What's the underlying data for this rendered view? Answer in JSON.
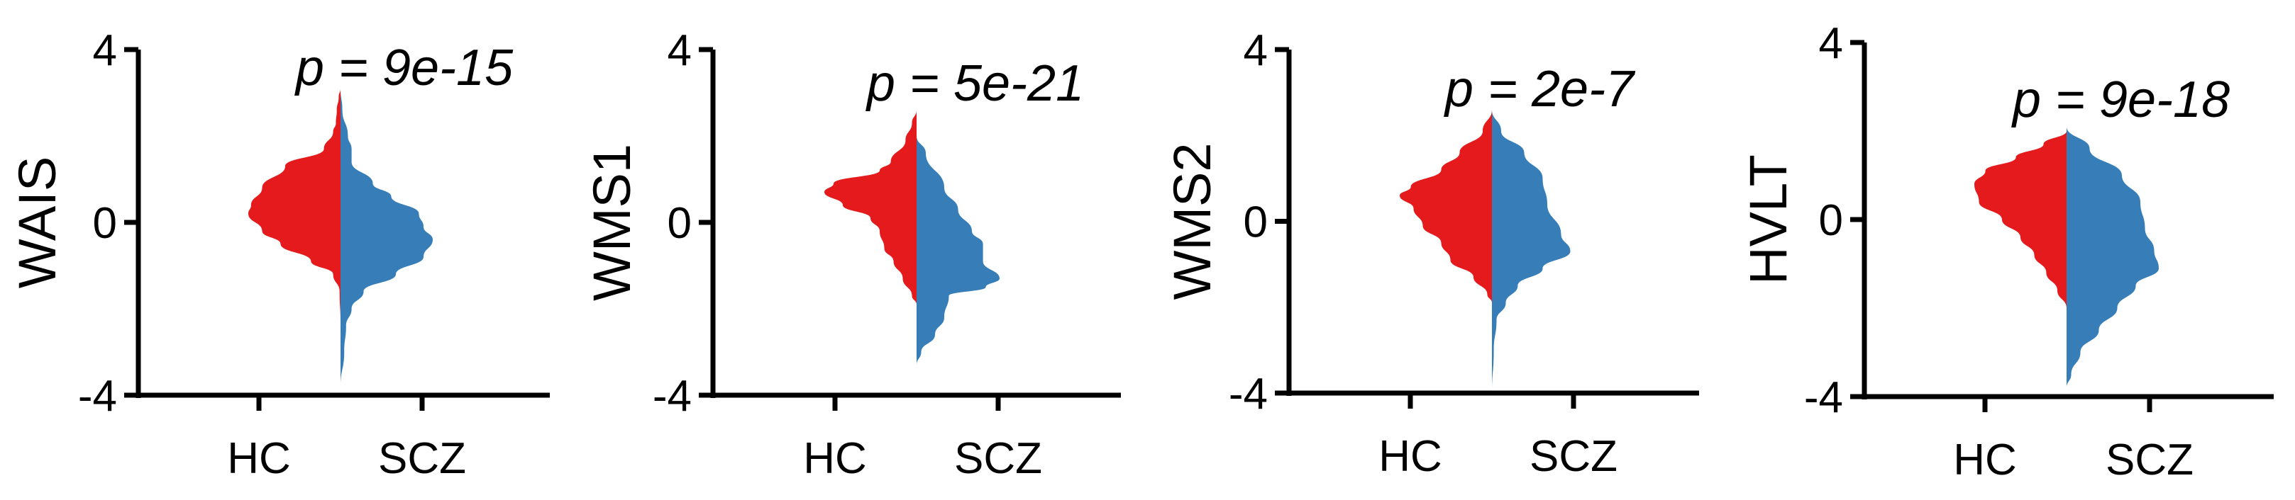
{
  "colors": {
    "hc": "#e41a1c",
    "scz": "#377eb8",
    "axis": "#000000"
  },
  "chart_data": [
    {
      "type": "violin",
      "ylabel": "WAIS",
      "annotation": "p = 9e-15",
      "categories": [
        "HC",
        "SCZ"
      ],
      "ylim": [
        -4,
        4
      ],
      "yticks": [
        "4",
        "0",
        "-4"
      ],
      "split_violin": true,
      "series": [
        {
          "name": "HC",
          "side": "left",
          "color": "#e41a1c",
          "density": [
            [
              3.1,
              0.0
            ],
            [
              2.9,
              0.02
            ],
            [
              2.6,
              0.04
            ],
            [
              2.3,
              0.05
            ],
            [
              2.1,
              0.08
            ],
            [
              1.7,
              0.18
            ],
            [
              1.3,
              0.6
            ],
            [
              0.8,
              0.85
            ],
            [
              0.4,
              0.97
            ],
            [
              0.2,
              1.0
            ],
            [
              -0.2,
              0.85
            ],
            [
              -0.5,
              0.65
            ],
            [
              -0.9,
              0.32
            ],
            [
              -1.2,
              0.08
            ],
            [
              -1.6,
              0.01
            ],
            [
              -2.3,
              0.0
            ]
          ]
        },
        {
          "name": "SCZ",
          "side": "right",
          "color": "#377eb8",
          "density": [
            [
              3.1,
              0.0
            ],
            [
              2.6,
              0.02
            ],
            [
              2.0,
              0.08
            ],
            [
              1.7,
              0.12
            ],
            [
              1.4,
              0.12
            ],
            [
              0.9,
              0.35
            ],
            [
              0.6,
              0.55
            ],
            [
              0.2,
              0.85
            ],
            [
              -0.1,
              0.9
            ],
            [
              -0.4,
              1.0
            ],
            [
              -0.8,
              0.9
            ],
            [
              -1.2,
              0.6
            ],
            [
              -1.6,
              0.25
            ],
            [
              -2.0,
              0.12
            ],
            [
              -2.4,
              0.06
            ],
            [
              -3.0,
              0.04
            ],
            [
              -3.8,
              0.0
            ]
          ]
        }
      ]
    },
    {
      "type": "violin",
      "ylabel": "WMS1",
      "annotation": "p = 5e-21",
      "categories": [
        "HC",
        "SCZ"
      ],
      "ylim": [
        -4,
        4
      ],
      "yticks": [
        "4",
        "0",
        "-4"
      ],
      "split_violin": true,
      "series": [
        {
          "name": "HC",
          "side": "left",
          "color": "#e41a1c",
          "density": [
            [
              2.6,
              0.0
            ],
            [
              2.3,
              0.05
            ],
            [
              1.9,
              0.12
            ],
            [
              1.4,
              0.28
            ],
            [
              1.2,
              0.4
            ],
            [
              0.9,
              0.9
            ],
            [
              0.7,
              1.0
            ],
            [
              0.4,
              0.8
            ],
            [
              0.1,
              0.5
            ],
            [
              -0.2,
              0.4
            ],
            [
              -0.6,
              0.35
            ],
            [
              -0.9,
              0.25
            ],
            [
              -1.3,
              0.15
            ],
            [
              -1.7,
              0.05
            ],
            [
              -1.9,
              0.0
            ]
          ]
        },
        {
          "name": "SCZ",
          "side": "right",
          "color": "#377eb8",
          "density": [
            [
              2.0,
              0.0
            ],
            [
              1.6,
              0.1
            ],
            [
              0.8,
              0.3
            ],
            [
              0.3,
              0.45
            ],
            [
              -0.2,
              0.6
            ],
            [
              -0.5,
              0.72
            ],
            [
              -0.9,
              0.72
            ],
            [
              -1.3,
              0.9
            ],
            [
              -1.5,
              0.75
            ],
            [
              -1.7,
              0.35
            ],
            [
              -2.2,
              0.3
            ],
            [
              -2.6,
              0.2
            ],
            [
              -3.0,
              0.05
            ],
            [
              -3.3,
              0.0
            ]
          ]
        }
      ]
    },
    {
      "type": "violin",
      "ylabel": "WMS2",
      "annotation": "p = 2e-7",
      "categories": [
        "HC",
        "SCZ"
      ],
      "ylim": [
        -4,
        4
      ],
      "yticks": [
        "4",
        "0",
        "-4"
      ],
      "split_violin": true,
      "series": [
        {
          "name": "HC",
          "side": "left",
          "color": "#e41a1c",
          "density": [
            [
              2.6,
              0.0
            ],
            [
              2.1,
              0.1
            ],
            [
              1.6,
              0.35
            ],
            [
              1.2,
              0.55
            ],
            [
              0.8,
              0.88
            ],
            [
              0.6,
              1.0
            ],
            [
              0.3,
              0.85
            ],
            [
              -0.1,
              0.75
            ],
            [
              -0.5,
              0.55
            ],
            [
              -0.9,
              0.45
            ],
            [
              -1.3,
              0.2
            ],
            [
              -1.7,
              0.05
            ],
            [
              -1.9,
              0.0
            ]
          ]
        },
        {
          "name": "SCZ",
          "side": "right",
          "color": "#377eb8",
          "density": [
            [
              2.6,
              0.0
            ],
            [
              2.1,
              0.1
            ],
            [
              1.6,
              0.35
            ],
            [
              1.0,
              0.55
            ],
            [
              0.4,
              0.6
            ],
            [
              -0.3,
              0.75
            ],
            [
              -0.7,
              0.85
            ],
            [
              -1.1,
              0.55
            ],
            [
              -1.5,
              0.28
            ],
            [
              -1.9,
              0.15
            ],
            [
              -2.3,
              0.05
            ],
            [
              -3.0,
              0.02
            ],
            [
              -4.0,
              0.0
            ]
          ]
        }
      ]
    },
    {
      "type": "violin",
      "ylabel": "HVLT",
      "annotation": "p = 9e-18",
      "categories": [
        "HC",
        "SCZ"
      ],
      "ylim": [
        -4,
        4
      ],
      "yticks": [
        "4",
        "0",
        "-4"
      ],
      "split_violin": true,
      "series": [
        {
          "name": "HC",
          "side": "left",
          "color": "#e41a1c",
          "density": [
            [
              2.0,
              0.0
            ],
            [
              1.7,
              0.25
            ],
            [
              1.4,
              0.55
            ],
            [
              1.1,
              0.88
            ],
            [
              0.8,
              1.0
            ],
            [
              0.4,
              0.95
            ],
            [
              0.0,
              0.7
            ],
            [
              -0.4,
              0.5
            ],
            [
              -0.8,
              0.35
            ],
            [
              -1.2,
              0.22
            ],
            [
              -1.6,
              0.1
            ],
            [
              -2.0,
              0.0
            ]
          ]
        },
        {
          "name": "SCZ",
          "side": "right",
          "color": "#377eb8",
          "density": [
            [
              2.1,
              0.0
            ],
            [
              1.6,
              0.25
            ],
            [
              1.0,
              0.6
            ],
            [
              0.4,
              0.8
            ],
            [
              -0.2,
              0.85
            ],
            [
              -0.7,
              0.95
            ],
            [
              -1.1,
              1.0
            ],
            [
              -1.5,
              0.75
            ],
            [
              -2.0,
              0.55
            ],
            [
              -2.5,
              0.35
            ],
            [
              -3.0,
              0.15
            ],
            [
              -3.5,
              0.05
            ],
            [
              -3.8,
              0.0
            ]
          ]
        }
      ]
    }
  ]
}
